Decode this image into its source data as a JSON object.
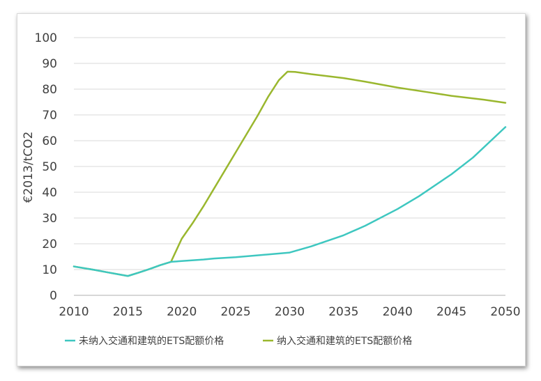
{
  "chart_data": {
    "type": "line",
    "title": "",
    "xlabel": "",
    "ylabel": "€2013/tCO2",
    "xlim": [
      2010,
      2050
    ],
    "ylim": [
      0,
      100
    ],
    "x_ticks": [
      "2010",
      "2015",
      "2020",
      "2025",
      "2030",
      "2035",
      "2040",
      "2045",
      "2050"
    ],
    "y_ticks": [
      "0",
      "10",
      "20",
      "30",
      "40",
      "50",
      "60",
      "70",
      "80",
      "90",
      "100"
    ],
    "grid": "horizontal",
    "legend_position": "bottom",
    "series": [
      {
        "name": "未纳入交通和建筑的ETS配额价格",
        "color": "#3ec7c0",
        "points": [
          [
            2010,
            11.2
          ],
          [
            2012,
            9.8
          ],
          [
            2013,
            9.0
          ],
          [
            2015,
            7.5
          ],
          [
            2016,
            8.8
          ],
          [
            2017,
            10.2
          ],
          [
            2018,
            11.7
          ],
          [
            2019,
            13.0
          ],
          [
            2020,
            13.3
          ],
          [
            2022,
            13.9
          ],
          [
            2023,
            14.3
          ],
          [
            2025,
            14.8
          ],
          [
            2027,
            15.5
          ],
          [
            2030,
            16.6
          ],
          [
            2032,
            19.0
          ],
          [
            2035,
            23.3
          ],
          [
            2037,
            27.0
          ],
          [
            2040,
            33.5
          ],
          [
            2042,
            38.5
          ],
          [
            2045,
            47.0
          ],
          [
            2047,
            53.5
          ],
          [
            2050,
            65.3
          ]
        ]
      },
      {
        "name": "纳入交通和建筑的ETS配额价格",
        "color": "#9ab72e",
        "points": [
          [
            2010,
            11.2
          ],
          [
            2012,
            9.8
          ],
          [
            2013,
            9.0
          ],
          [
            2015,
            7.5
          ],
          [
            2016,
            8.8
          ],
          [
            2017,
            10.2
          ],
          [
            2018,
            11.7
          ],
          [
            2019,
            13.0
          ],
          [
            2020,
            22.0
          ],
          [
            2021,
            28.0
          ],
          [
            2022,
            34.5
          ],
          [
            2023,
            41.5
          ],
          [
            2024,
            48.5
          ],
          [
            2025,
            55.5
          ],
          [
            2026,
            62.5
          ],
          [
            2027,
            69.5
          ],
          [
            2028,
            77.0
          ],
          [
            2029,
            83.5
          ],
          [
            2029.8,
            86.8
          ],
          [
            2030.5,
            86.7
          ],
          [
            2032,
            85.8
          ],
          [
            2034,
            84.8
          ],
          [
            2035,
            84.3
          ],
          [
            2037,
            82.9
          ],
          [
            2040,
            80.6
          ],
          [
            2043,
            78.7
          ],
          [
            2045,
            77.4
          ],
          [
            2048,
            75.9
          ],
          [
            2050,
            74.7
          ]
        ]
      }
    ]
  }
}
